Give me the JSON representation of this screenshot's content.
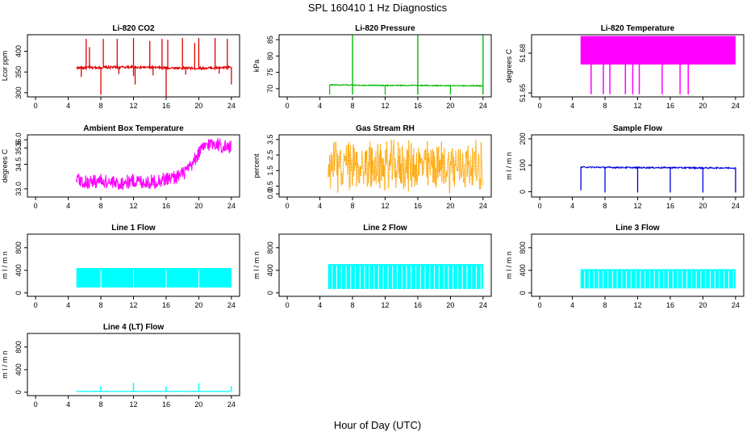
{
  "page_title": "SPL  160410  1 Hz Diagnostics",
  "x_axis_label": "Hour of Day (UTC)",
  "chart_data": [
    {
      "id": "co2",
      "type": "line",
      "title": "Li-820 CO2",
      "ylabel": "Lcor ppm",
      "color": "#e00000",
      "xlim": [
        -1,
        25
      ],
      "ylim": [
        290,
        440
      ],
      "xticks": [
        0,
        4,
        8,
        12,
        16,
        20,
        24
      ],
      "yticks": [
        300,
        350,
        400
      ],
      "series": [
        {
          "name": "Li-820 CO2",
          "x": [
            5,
            8,
            12,
            16,
            20,
            24
          ],
          "values": [
            360,
            361,
            362,
            360,
            359,
            361
          ]
        }
      ]
    },
    {
      "id": "pressure",
      "type": "line",
      "title": "Li-820 Pressure",
      "ylabel": "kPa",
      "color": "#00bb00",
      "xlim": [
        -1,
        25
      ],
      "ylim": [
        67.5,
        86.5
      ],
      "xticks": [
        0,
        4,
        8,
        12,
        16,
        20,
        24
      ],
      "yticks": [
        70,
        75,
        80,
        85
      ],
      "series": [
        {
          "name": "Li-820 Pressure",
          "x": [
            5.2,
            8,
            12,
            16,
            20,
            24
          ],
          "values": [
            71.2,
            71.1,
            71.0,
            71.0,
            70.9,
            70.9
          ]
        }
      ]
    },
    {
      "id": "li_temp",
      "type": "line",
      "title": "Li-820 Temperature",
      "ylabel": "degrees C",
      "color": "#ff00ff",
      "xlim": [
        -1,
        25
      ],
      "ylim": [
        51.647,
        51.694
      ],
      "xticks": [
        0,
        4,
        8,
        12,
        16,
        20,
        24
      ],
      "yticks": [
        51.65,
        51.68
      ],
      "series": [
        {
          "name": "Li-820 Temperature",
          "x": [
            5,
            24
          ],
          "values": [
            51.68,
            51.68
          ]
        }
      ]
    },
    {
      "id": "box_temp",
      "type": "line",
      "title": "Ambient Box Temperature",
      "ylabel": "degrees C",
      "color": "#ff00ff",
      "xlim": [
        -1,
        25
      ],
      "ylim": [
        32.5,
        36.3
      ],
      "xticks": [
        0,
        4,
        8,
        12,
        16,
        20,
        24
      ],
      "yticks": [
        33.0,
        34.5,
        35.5,
        36.0
      ],
      "series": [
        {
          "name": "Ambient Box Temperature",
          "x": [
            5,
            6,
            8,
            10,
            12,
            14,
            16,
            17,
            18,
            19,
            20,
            21,
            22,
            23,
            24
          ],
          "values": [
            33.6,
            33.4,
            33.5,
            33.3,
            33.5,
            33.4,
            33.6,
            33.7,
            33.9,
            34.3,
            35.2,
            35.7,
            35.8,
            35.6,
            35.5
          ]
        }
      ]
    },
    {
      "id": "rh",
      "type": "line",
      "title": "Gas Stream RH",
      "ylabel": "percent",
      "color": "#ffa500",
      "xlim": [
        -1,
        25
      ],
      "ylim": [
        -0.2,
        3.8
      ],
      "xticks": [
        0,
        4,
        8,
        12,
        16,
        20,
        24
      ],
      "yticks": [
        0.0,
        0.5,
        1.5,
        2.5,
        3.5
      ],
      "series": [
        {
          "name": "Gas Stream RH",
          "x": [
            5,
            24
          ],
          "values": [
            1.8,
            1.8
          ]
        }
      ]
    },
    {
      "id": "sample_flow",
      "type": "line",
      "title": "Sample Flow",
      "ylabel": "m l / m n",
      "color": "#0000dd",
      "xlim": [
        -1,
        25
      ],
      "ylim": [
        -20,
        215
      ],
      "xticks": [
        0,
        4,
        8,
        12,
        16,
        20,
        24
      ],
      "yticks": [
        0,
        100,
        200
      ],
      "series": [
        {
          "name": "Sample Flow",
          "x": [
            5,
            8,
            12,
            16,
            20,
            24
          ],
          "values": [
            93,
            92,
            91,
            91,
            90,
            90
          ]
        }
      ]
    },
    {
      "id": "line1",
      "type": "line",
      "title": "Line 1 Flow",
      "ylabel": "m l / m n",
      "color": "#00ffff",
      "xlim": [
        -1,
        25
      ],
      "ylim": [
        -60,
        1040
      ],
      "xticks": [
        0,
        4,
        8,
        12,
        16,
        20,
        24
      ],
      "yticks": [
        0,
        400,
        800
      ],
      "series": [
        {
          "name": "Line 1 Flow",
          "x": [
            5,
            24
          ],
          "values": [
            270,
            270
          ]
        }
      ]
    },
    {
      "id": "line2",
      "type": "line",
      "title": "Line 2 Flow",
      "ylabel": "m l / m n",
      "color": "#00ffff",
      "xlim": [
        -1,
        25
      ],
      "ylim": [
        -60,
        1040
      ],
      "xticks": [
        0,
        4,
        8,
        12,
        16,
        20,
        24
      ],
      "yticks": [
        0,
        400,
        800
      ],
      "series": [
        {
          "name": "Line 2 Flow",
          "x": [
            5,
            24
          ],
          "values": [
            290,
            290
          ]
        }
      ]
    },
    {
      "id": "line3",
      "type": "line",
      "title": "Line 3 Flow",
      "ylabel": "m l / m n",
      "color": "#00ffff",
      "xlim": [
        -1,
        25
      ],
      "ylim": [
        -60,
        1040
      ],
      "xticks": [
        0,
        4,
        8,
        12,
        16,
        20,
        24
      ],
      "yticks": [
        0,
        400,
        800
      ],
      "series": [
        {
          "name": "Line 3 Flow",
          "x": [
            5,
            24
          ],
          "values": [
            250,
            250
          ]
        }
      ]
    },
    {
      "id": "line4",
      "type": "line",
      "title": "Line 4 (LT) Flow",
      "ylabel": "m l / m n",
      "color": "#00ffff",
      "xlim": [
        -1,
        25
      ],
      "ylim": [
        -60,
        1040
      ],
      "xticks": [
        0,
        4,
        8,
        12,
        16,
        20,
        24
      ],
      "yticks": [
        0,
        400,
        800
      ],
      "series": [
        {
          "name": "Line 4 (LT) Flow",
          "x": [
            5,
            8,
            12,
            16,
            20,
            24
          ],
          "values": [
            15,
            15,
            15,
            15,
            15,
            15
          ]
        }
      ]
    }
  ]
}
